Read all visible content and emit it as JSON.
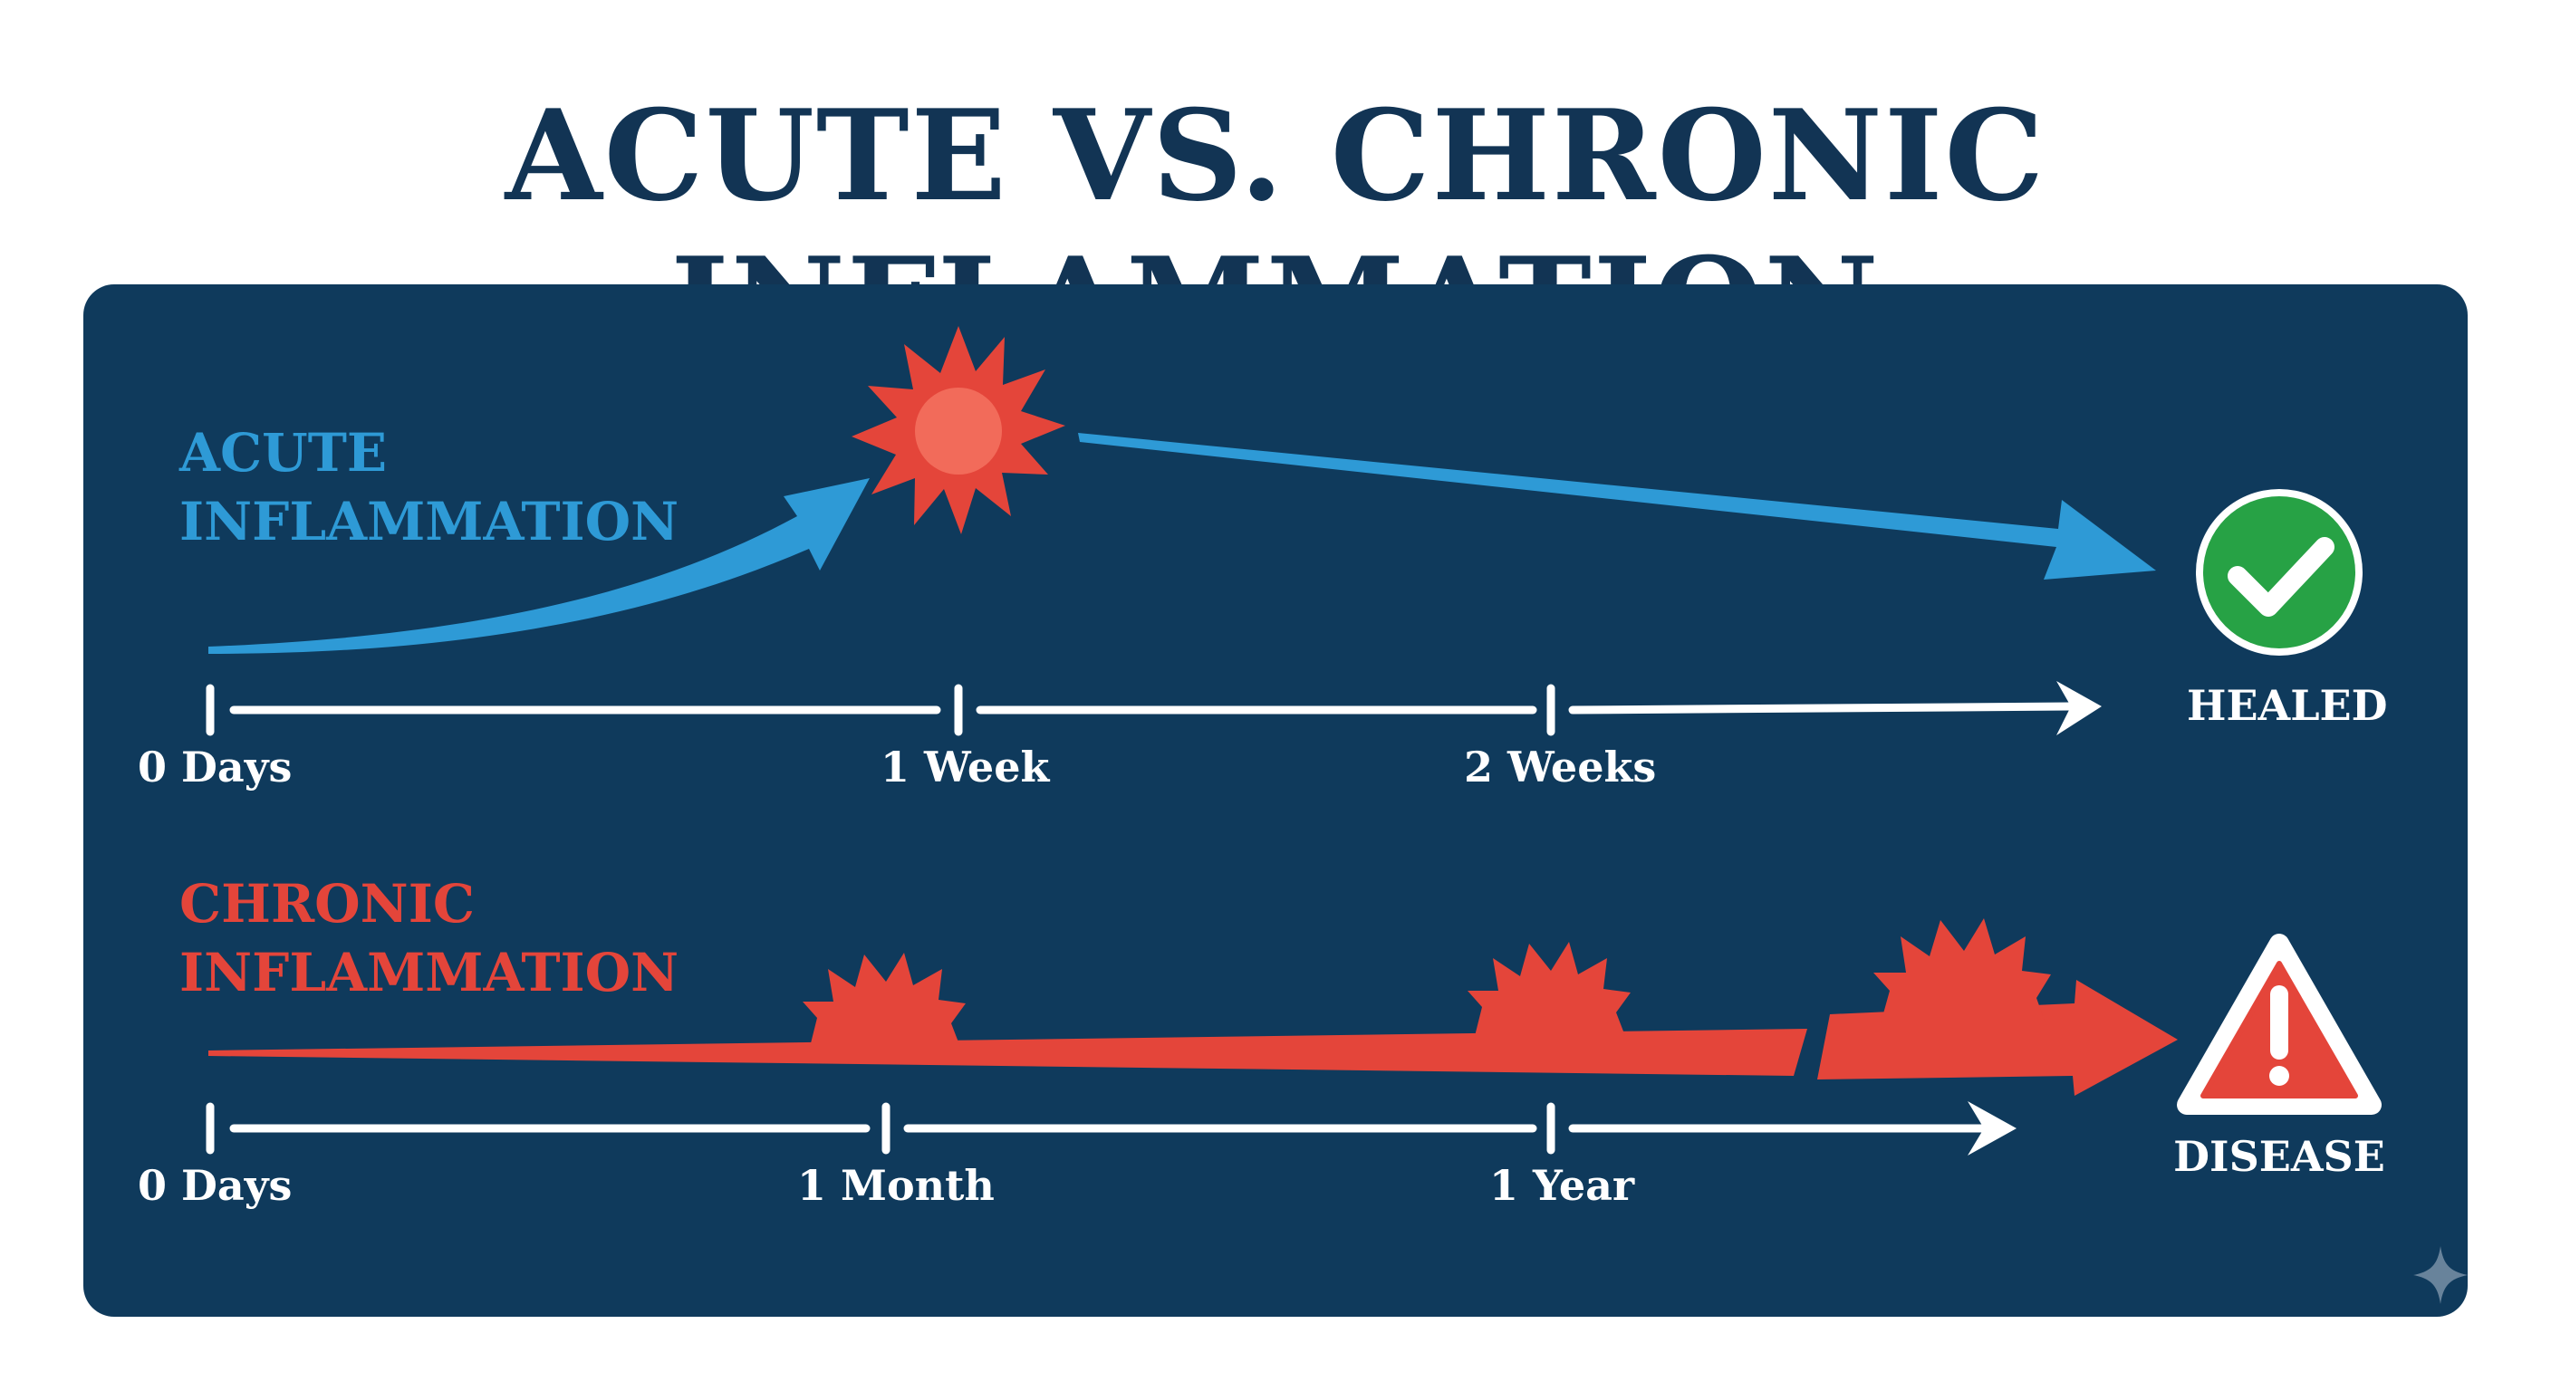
{
  "title": "ACUTE VS. CHRONIC INFLAMMATION",
  "colors": {
    "background": "#ffffff",
    "title": "#123454",
    "panel": "#0f3a5c",
    "acute": "#2e9ad6",
    "chronic": "#e4453a",
    "burst": "#e4453a",
    "axis": "#ffffff",
    "healed_icon": "#27a245",
    "disease_icon": "#e4453a"
  },
  "acute": {
    "label_line1": "ACUTE",
    "label_line2": "INFLAMMATION",
    "ticks": [
      "0 Days",
      "1 Week",
      "2 Weeks"
    ],
    "outcome": "HEALED",
    "outcome_icon": "check-circle-icon"
  },
  "chronic": {
    "label_line1": "CHRONIC",
    "label_line2": "INFLAMMATION",
    "ticks": [
      "0 Days",
      "1 Month",
      "1 Year"
    ],
    "outcome": "DISEASE",
    "outcome_icon": "warning-triangle-icon"
  }
}
